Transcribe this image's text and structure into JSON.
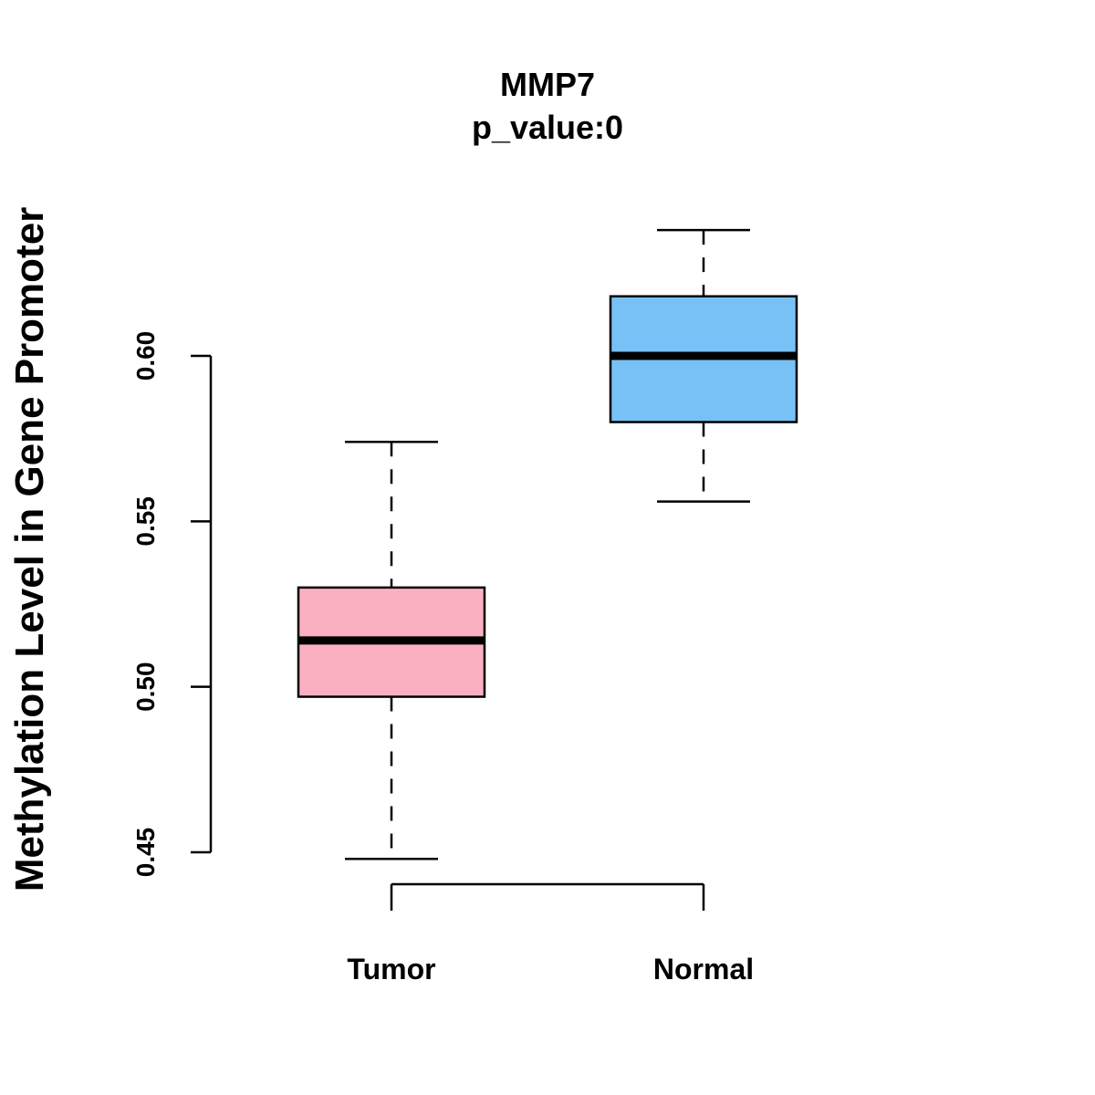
{
  "chart_data": {
    "type": "boxplot",
    "title": "MMP7",
    "subtitle": "p_value:0",
    "xlabel": "",
    "ylabel": "Methylation Level in Gene Promoter",
    "ylim": [
      0.45,
      0.6
    ],
    "yticks": [
      0.45,
      0.5,
      0.55,
      0.6
    ],
    "ytick_labels": [
      "0.45",
      "0.50",
      "0.55",
      "0.60"
    ],
    "categories": [
      "Tumor",
      "Normal"
    ],
    "series": [
      {
        "name": "Tumor",
        "color": "#FBB0C2",
        "whisker_low": 0.448,
        "q1": 0.497,
        "median": 0.514,
        "q3": 0.53,
        "whisker_high": 0.574
      },
      {
        "name": "Normal",
        "color": "#78C1F7",
        "whisker_low": 0.556,
        "q1": 0.58,
        "median": 0.6,
        "q3": 0.618,
        "whisker_high": 0.638
      }
    ],
    "grid": false,
    "legend": "none"
  }
}
